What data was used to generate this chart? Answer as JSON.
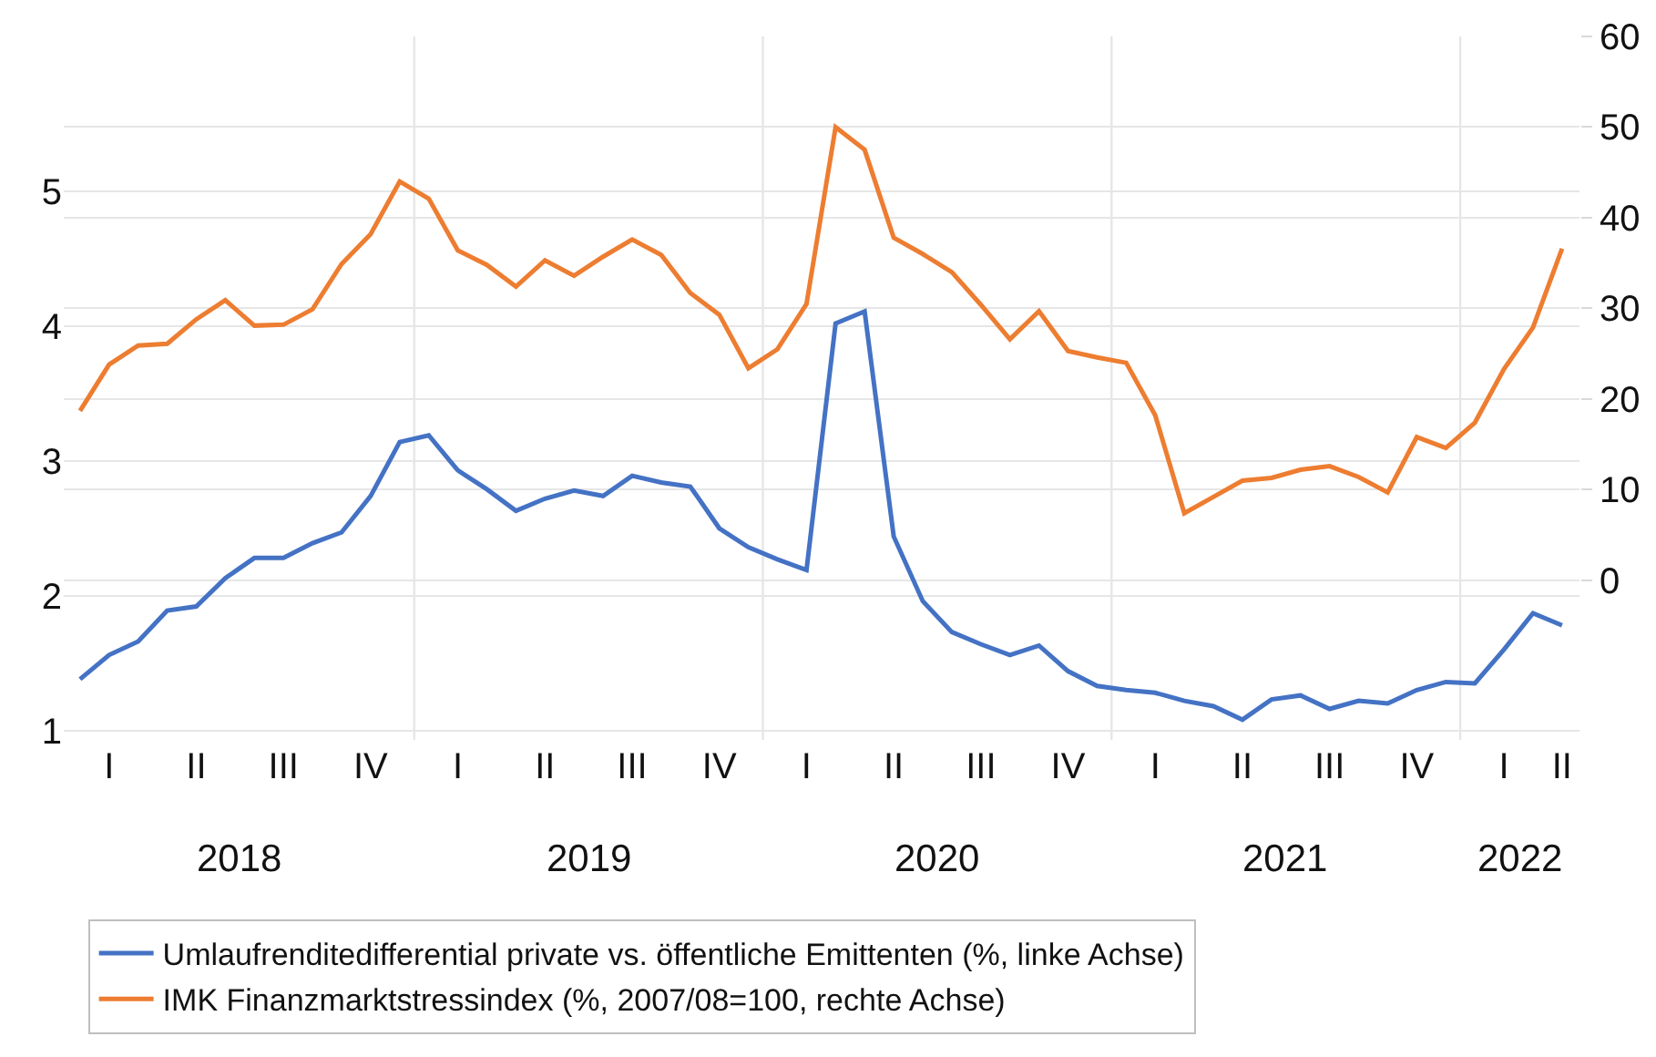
{
  "chart_data": {
    "type": "line",
    "categories": [
      null,
      "I",
      null,
      null,
      "II",
      null,
      null,
      "III",
      null,
      null,
      "IV",
      null,
      null,
      "I",
      null,
      null,
      "II",
      null,
      null,
      "III",
      null,
      null,
      "IV",
      null,
      null,
      "I",
      null,
      null,
      "II",
      null,
      null,
      "III",
      null,
      null,
      "IV",
      null,
      null,
      "I",
      null,
      null,
      "II",
      null,
      null,
      "III",
      null,
      null,
      "IV",
      null,
      null,
      "I",
      null,
      "II"
    ],
    "series": [
      {
        "name": "Umlaufrenditedifferential private vs. öffentliche Emittenten (%, linke Achse)",
        "color": "#4472c4",
        "values": [
          1.38,
          1.56,
          1.66,
          1.89,
          1.92,
          2.13,
          2.28,
          2.28,
          2.39,
          2.47,
          2.74,
          3.14,
          3.19,
          2.93,
          2.79,
          2.63,
          2.72,
          2.78,
          2.74,
          2.89,
          2.84,
          2.81,
          2.5,
          2.36,
          2.27,
          2.19,
          4.02,
          4.11,
          2.44,
          1.96,
          1.73,
          1.64,
          1.56,
          1.63,
          1.44,
          1.33,
          1.3,
          1.28,
          1.22,
          1.18,
          1.08,
          1.23,
          1.26,
          1.16,
          1.22,
          1.2,
          1.3,
          1.36,
          1.35,
          1.6,
          1.87,
          1.78
        ]
      },
      {
        "name": "IMK Finanzmarktstressindex (%, 2007/08=100, rechte Achse)",
        "color": "#ed7d31",
        "axis": "y2",
        "values": [
          18.7,
          23.8,
          25.9,
          26.1,
          28.8,
          30.9,
          28.1,
          28.2,
          29.9,
          34.9,
          38.2,
          44.0,
          42.1,
          36.4,
          34.8,
          32.4,
          35.3,
          33.6,
          35.7,
          37.6,
          35.9,
          31.7,
          29.3,
          23.4,
          25.5,
          30.5,
          50.0,
          47.5,
          37.8,
          36.0,
          34.0,
          30.4,
          26.6,
          29.7,
          25.3,
          24.6,
          24.0,
          18.2,
          7.4,
          9.2,
          11.0,
          11.3,
          12.2,
          12.6,
          11.4,
          9.7,
          15.8,
          14.6,
          17.4,
          23.3,
          27.9,
          36.6
        ]
      }
    ],
    "x2lim": [
      2017.995,
      2022.342
    ],
    "x2ticks": [
      {
        "value": 2018.5,
        "label": "2018"
      },
      {
        "value": 2019,
        "label": null
      },
      {
        "value": 2019.5,
        "label": "2019"
      },
      {
        "value": 2020,
        "label": null
      },
      {
        "value": 2020.5,
        "label": "2020"
      },
      {
        "value": 2021,
        "label": null
      },
      {
        "value": 2021.5,
        "label": "2021"
      },
      {
        "value": 2022,
        "label": null
      },
      {
        "value": 2022.17,
        "label": "2022"
      }
    ],
    "ylim": [
      0.93,
      6.15
    ],
    "yticks": [
      1,
      2,
      3,
      4,
      5
    ],
    "y2lim": [
      -17.6,
      60
    ],
    "y2ticks": [
      0,
      10,
      20,
      30,
      40,
      50,
      60
    ],
    "grid": true,
    "legend": "bottom",
    "line_style": "solid",
    "marker": "none"
  }
}
